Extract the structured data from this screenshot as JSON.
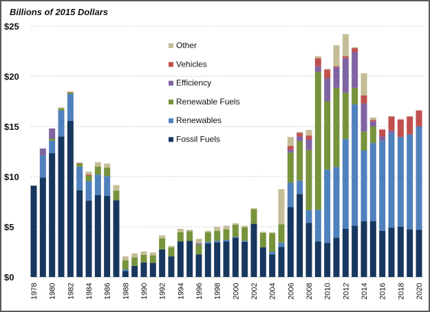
{
  "chart_data": {
    "type": "bar",
    "stacked": true,
    "title": "Billions of 2015 Dollars",
    "xlabel": "",
    "ylabel": "Billions of 2015 Dollars",
    "ylim": [
      0,
      25
    ],
    "yticks": [
      0,
      5,
      10,
      15,
      20,
      25
    ],
    "ytick_labels": [
      "$0",
      "$5",
      "$10",
      "$15",
      "$20",
      "$25"
    ],
    "grid": true,
    "legend_position": "top-center",
    "categories": [
      1978,
      1979,
      1980,
      1981,
      1982,
      1983,
      1984,
      1985,
      1986,
      1987,
      1988,
      1989,
      1990,
      1991,
      1992,
      1993,
      1994,
      1995,
      1996,
      1997,
      1998,
      1999,
      2000,
      2001,
      2002,
      2003,
      2004,
      2005,
      2006,
      2007,
      2008,
      2009,
      2010,
      2011,
      2012,
      2013,
      2014,
      2015,
      2016,
      2017,
      2018,
      2019,
      2020
    ],
    "xtick_labels": [
      "1978",
      "1980",
      "1982",
      "1984",
      "1986",
      "1988",
      "1990",
      "1992",
      "1994",
      "1996",
      "1998",
      "2000",
      "2002",
      "2004",
      "2006",
      "2008",
      "2010",
      "2012",
      "2014",
      "2016",
      "2018",
      "2020"
    ],
    "series": [
      {
        "name": "Fossil Fuels",
        "color": "#17375e",
        "values": [
          9.1,
          9.9,
          12.35,
          14.0,
          15.55,
          8.65,
          7.6,
          8.15,
          8.1,
          7.65,
          0.6,
          1.1,
          1.45,
          1.4,
          2.75,
          2.05,
          3.55,
          3.6,
          2.25,
          3.35,
          3.45,
          3.55,
          3.9,
          3.5,
          5.3,
          2.95,
          2.25,
          3.0,
          6.95,
          8.25,
          5.4,
          3.55,
          3.4,
          3.9,
          4.8,
          5.1,
          5.55,
          5.55,
          4.6,
          4.9,
          5.0,
          4.75,
          4.7
        ]
      },
      {
        "name": "Renewables",
        "color": "#4f81bd",
        "values": [
          0,
          2.2,
          1.25,
          2.6,
          2.7,
          2.35,
          1.95,
          2.05,
          1.95,
          0,
          0.15,
          0,
          0,
          0,
          0,
          0,
          0,
          0,
          0,
          0.15,
          0.15,
          0.15,
          0.1,
          0.1,
          0,
          0,
          0.25,
          0.4,
          2.45,
          1.35,
          1.25,
          3.15,
          7.3,
          7.05,
          8.95,
          12.1,
          7.05,
          7.8,
          8.95,
          9.4,
          8.95,
          9.45,
          10.3
        ]
      },
      {
        "name": "Renewable Fuels",
        "color": "#77933c",
        "values": [
          0,
          0,
          0.2,
          0.2,
          0.15,
          0.3,
          0.55,
          0.8,
          0.85,
          0.95,
          0.9,
          0.85,
          0.75,
          0.75,
          1.1,
          0.9,
          0.9,
          0.95,
          0.95,
          0.95,
          1.0,
          1.05,
          1.2,
          1.35,
          1.45,
          1.45,
          1.85,
          1.85,
          3.0,
          3.95,
          6.0,
          13.75,
          6.8,
          7.9,
          4.6,
          1.65,
          1.9,
          1.65,
          0,
          0,
          0,
          0,
          0
        ]
      },
      {
        "name": "Efficiency",
        "color": "#8064a2",
        "values": [
          0,
          0.7,
          1.0,
          0,
          0,
          0,
          0,
          0,
          0,
          0,
          0,
          0,
          0,
          0,
          0,
          0,
          0,
          0,
          0.15,
          0,
          0,
          0,
          0,
          0,
          0,
          0,
          0,
          0,
          0.3,
          0.45,
          1.05,
          0.55,
          2.3,
          2.05,
          3.45,
          3.55,
          2.8,
          0.5,
          0.45,
          0.3,
          0,
          0,
          0
        ]
      },
      {
        "name": "Vehicles",
        "color": "#c0504d",
        "values": [
          0,
          0,
          0,
          0,
          0.05,
          0.05,
          0.1,
          0,
          0,
          0,
          0,
          0,
          0,
          0,
          0,
          0,
          0,
          0,
          0,
          0,
          0,
          0,
          0,
          0,
          0,
          0,
          0,
          0,
          0.35,
          0.35,
          0.4,
          0.8,
          0.85,
          0.1,
          0.2,
          0.4,
          0.8,
          0.15,
          0.7,
          1.4,
          1.75,
          1.8,
          1.6
        ]
      },
      {
        "name": "Other",
        "color": "#c4bd97",
        "values": [
          0,
          0,
          0,
          0.1,
          0,
          0.05,
          0.3,
          0.45,
          0.4,
          0.55,
          0.4,
          0.4,
          0.35,
          0.3,
          0.3,
          0.15,
          0.35,
          0.15,
          0.45,
          0.15,
          0.4,
          0.35,
          0.15,
          0.15,
          0.1,
          0.1,
          0.1,
          3.5,
          0.9,
          0.1,
          0.55,
          0.2,
          0.1,
          2.1,
          2.2,
          0.1,
          2.2,
          0.25,
          0,
          0,
          0,
          0,
          0
        ]
      }
    ],
    "legend_order": [
      "Other",
      "Vehicles",
      "Efficiency",
      "Renewable Fuels",
      "Renewables",
      "Fossil Fuels"
    ]
  }
}
